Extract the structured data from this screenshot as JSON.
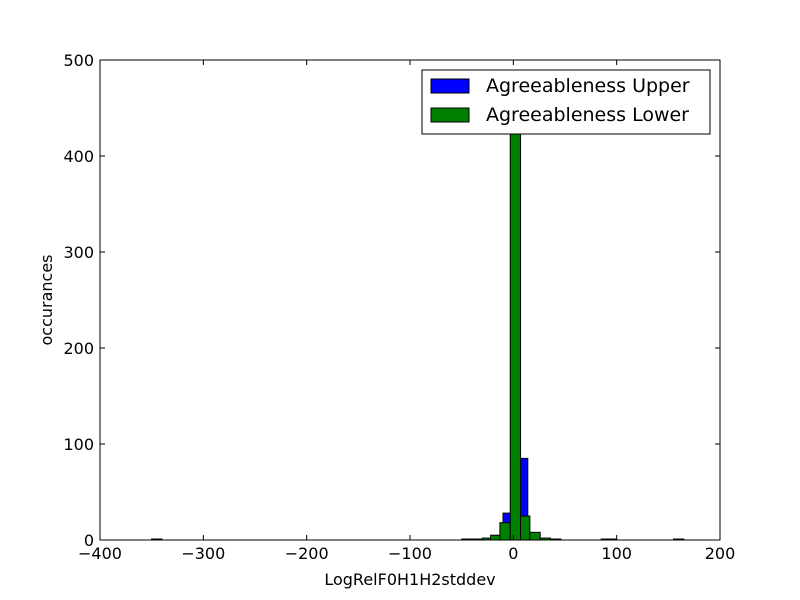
{
  "chart_data": {
    "type": "bar",
    "xlabel": "LogRelF0H1H2stddev",
    "ylabel": "occurances",
    "xlim": [
      -400,
      200
    ],
    "ylim": [
      0,
      500
    ],
    "x_ticks": [
      -400,
      -300,
      -200,
      -100,
      0,
      100,
      200
    ],
    "x_tick_labels": [
      "−400",
      "−300",
      "−200",
      "−100",
      "0",
      "100",
      "200"
    ],
    "y_ticks": [
      0,
      100,
      200,
      300,
      400,
      500
    ],
    "y_tick_labels": [
      "0",
      "100",
      "200",
      "300",
      "400",
      "500"
    ],
    "legend_position": "top-right",
    "series": [
      {
        "name": "Agreeableness Upper",
        "color": "#0000ff",
        "bins": [
          {
            "x0": -350,
            "x1": -340,
            "count": 1
          },
          {
            "x0": -30,
            "x1": -20,
            "count": 1
          },
          {
            "x0": -20,
            "x1": -10,
            "count": 4
          },
          {
            "x0": -10,
            "x1": -2,
            "count": 28
          },
          {
            "x0": -2,
            "x1": 6,
            "count": 460
          },
          {
            "x0": 6,
            "x1": 14,
            "count": 85
          },
          {
            "x0": 14,
            "x1": 22,
            "count": 6
          },
          {
            "x0": 22,
            "x1": 30,
            "count": 1
          }
        ]
      },
      {
        "name": "Agreeableness Lower",
        "color": "#008000",
        "bins": [
          {
            "x0": -350,
            "x1": -340,
            "count": 1
          },
          {
            "x0": -50,
            "x1": -40,
            "count": 1
          },
          {
            "x0": -40,
            "x1": -30,
            "count": 1
          },
          {
            "x0": -30,
            "x1": -22,
            "count": 2
          },
          {
            "x0": -22,
            "x1": -13,
            "count": 5
          },
          {
            "x0": -13,
            "x1": -3,
            "count": 18
          },
          {
            "x0": -3,
            "x1": 7,
            "count": 430
          },
          {
            "x0": 7,
            "x1": 16,
            "count": 25
          },
          {
            "x0": 16,
            "x1": 26,
            "count": 8
          },
          {
            "x0": 26,
            "x1": 36,
            "count": 2
          },
          {
            "x0": 36,
            "x1": 46,
            "count": 1
          },
          {
            "x0": 85,
            "x1": 100,
            "count": 1
          },
          {
            "x0": 155,
            "x1": 165,
            "count": 1
          }
        ]
      }
    ]
  }
}
